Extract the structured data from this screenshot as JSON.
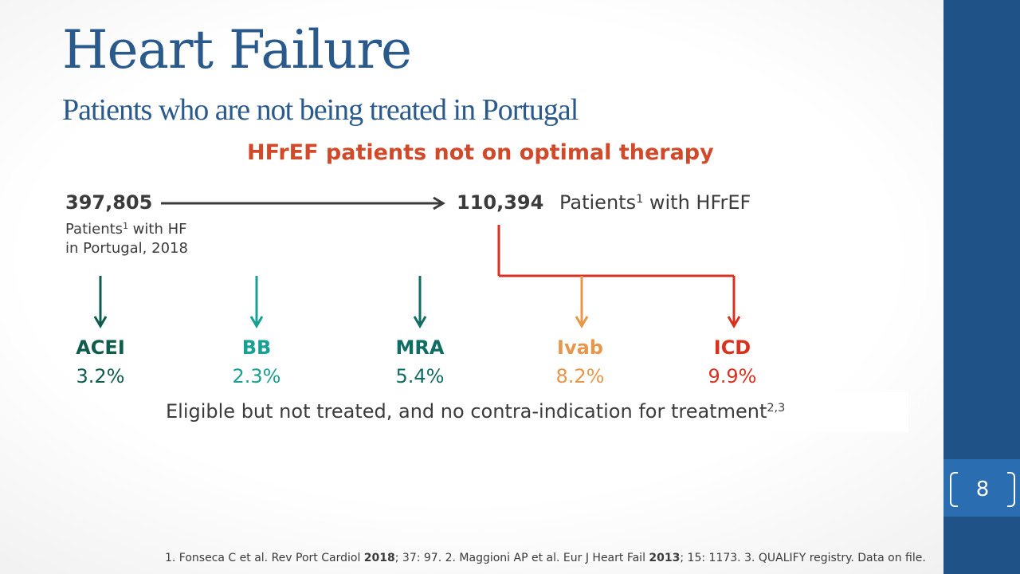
{
  "slide": {
    "title": "Heart Failure",
    "subtitle": "Patients who are not being treated in Portugal",
    "heading": "HFrEF patients not on optimal therapy",
    "page_number": "8"
  },
  "flow": {
    "total_count": "397,805",
    "total_label_line1_prefix": "Patients",
    "total_label_sup": "1",
    "total_label_line1_suffix": " with HF",
    "total_label_line2": "in Portugal, 2018",
    "hfref_count": "110,394",
    "hfref_label_prefix": "Patients",
    "hfref_label_sup": "1",
    "hfref_label_suffix": " with HFrEF"
  },
  "treatments": [
    {
      "name": "ACEI",
      "percent": "3.2%",
      "color": "#0f5c4c"
    },
    {
      "name": "BB",
      "percent": "2.3%",
      "color": "#17a093"
    },
    {
      "name": "MRA",
      "percent": "5.4%",
      "color": "#0f6d63"
    },
    {
      "name": "Ivab",
      "percent": "8.2%",
      "color": "#e8974a"
    },
    {
      "name": "ICD",
      "percent": "9.9%",
      "color": "#d8321e"
    }
  ],
  "note": {
    "text": "Eligible but not treated, and no contra-indication for treatment",
    "sup": "2,3"
  },
  "references": {
    "r1a": "1. Fonseca C et al. Rev Port Cardiol ",
    "r1y": "2018",
    "r1b": "; 37: 97. 2. Maggioni AP et al. Eur J Heart Fail ",
    "r2y": "2013",
    "r2b": "; 15: 1173. 3. QUALIFY registry. Data on file."
  }
}
